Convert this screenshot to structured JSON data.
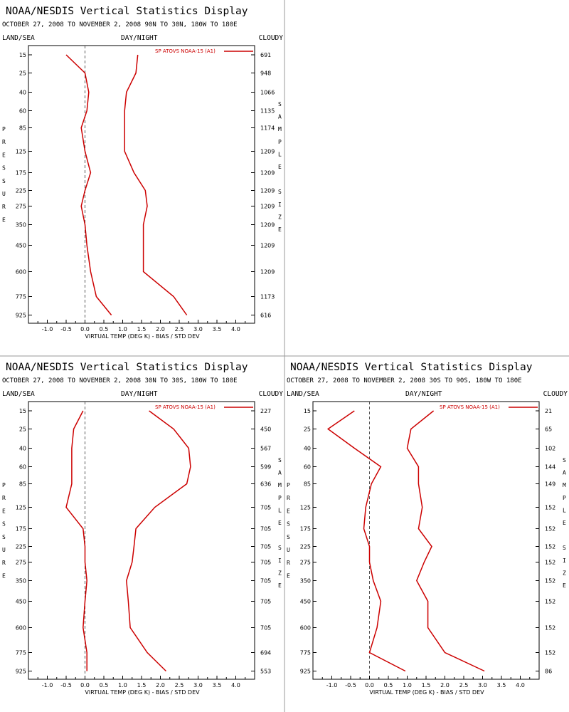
{
  "panels": [
    {
      "title": "NOAA/NESDIS Vertical Statistics Display",
      "subtitle": "OCTOBER 27, 2008 TO NOVEMBER 2, 2008 90N TO 30N, 180W TO 180E",
      "header_left": "LAND/SEA",
      "header_center": "DAY/NIGHT",
      "header_right": "CLOUDY",
      "ylabel": "PRESSURE",
      "y2label": "SAMPLE SIZE",
      "xlabel": "VIRTUAL TEMP (DEG K) - BIAS / STD DEV",
      "legend": "SP ATOVS NOAA-15 (A1)",
      "chart_data": {
        "type": "line",
        "pressure_levels": [
          15,
          25,
          40,
          60,
          85,
          125,
          175,
          225,
          275,
          350,
          450,
          600,
          775,
          925
        ],
        "x_ticks": [
          "-1.0",
          "-0.5",
          "0.0",
          "0.5",
          "1.0",
          "1.5",
          "2.0",
          "2.5",
          "3.0",
          "3.5",
          "4.0"
        ],
        "xlim": [
          -1.5,
          4.5
        ],
        "zero_line": "dashed",
        "color": "#cc0000",
        "series": [
          {
            "values": [
              -0.5,
              0.0,
              0.1,
              0.05,
              -0.1,
              0.0,
              0.15,
              0.0,
              -0.1,
              0.0,
              0.05,
              0.15,
              0.3,
              0.7
            ]
          },
          {
            "values": [
              1.4,
              1.35,
              1.1,
              1.05,
              1.05,
              1.05,
              1.3,
              1.6,
              1.65,
              1.55,
              1.55,
              1.55,
              2.35,
              2.7
            ]
          }
        ],
        "sample_size": [
          "691",
          "948",
          "1066",
          "1135",
          "1174",
          "1209",
          "1209",
          "1209",
          "1209",
          "1209",
          "1209",
          "1209",
          "1173",
          "616"
        ]
      }
    },
    {
      "title": "NOAA/NESDIS Vertical Statistics Display",
      "subtitle": "OCTOBER 27, 2008 TO NOVEMBER 2, 2008 30N TO 30S, 180W TO 180E",
      "header_left": "LAND/SEA",
      "header_center": "DAY/NIGHT",
      "header_right": "CLOUDY",
      "ylabel": "PRESSURE",
      "y2label": "SAMPLE SIZE",
      "xlabel": "VIRTUAL TEMP (DEG K) - BIAS / STD DEV",
      "legend": "SP ATOVS NOAA-15 (A1)",
      "chart_data": {
        "type": "line",
        "pressure_levels": [
          15,
          25,
          40,
          60,
          85,
          125,
          175,
          225,
          275,
          350,
          450,
          600,
          775,
          925
        ],
        "x_ticks": [
          "-1.0",
          "-0.5",
          "0.0",
          "0.5",
          "1.0",
          "1.5",
          "2.0",
          "2.5",
          "3.0",
          "3.5",
          "4.0"
        ],
        "xlim": [
          -1.5,
          4.5
        ],
        "zero_line": "dashed",
        "color": "#cc0000",
        "series": [
          {
            "values": [
              -0.05,
              -0.3,
              -0.35,
              -0.35,
              -0.35,
              -0.5,
              -0.05,
              0.0,
              0.0,
              0.05,
              0.0,
              -0.05,
              0.05,
              0.05
            ]
          },
          {
            "values": [
              1.7,
              2.35,
              2.75,
              2.8,
              2.7,
              1.85,
              1.35,
              1.3,
              1.25,
              1.1,
              1.15,
              1.2,
              1.65,
              2.15
            ]
          }
        ],
        "sample_size": [
          "227",
          "450",
          "567",
          "599",
          "636",
          "705",
          "705",
          "705",
          "705",
          "705",
          "705",
          "705",
          "694",
          "553"
        ]
      }
    },
    {
      "title": "NOAA/NESDIS Vertical Statistics Display",
      "subtitle": "OCTOBER 27, 2008 TO NOVEMBER 2, 2008 30S TO 90S, 180W TO 180E",
      "header_left": "LAND/SEA",
      "header_center": "DAY/NIGHT",
      "header_right": "CLOUDY",
      "ylabel": "PRESSURE",
      "y2label": "SAMPLE SIZE",
      "xlabel": "VIRTUAL TEMP (DEG K) - BIAS / STD DEV",
      "legend": "SP ATOVS NOAA-15 (A1)",
      "chart_data": {
        "type": "line",
        "pressure_levels": [
          15,
          25,
          40,
          60,
          85,
          125,
          175,
          225,
          275,
          350,
          450,
          600,
          775,
          925
        ],
        "x_ticks": [
          "-1.0",
          "-0.5",
          "0.0",
          "0.5",
          "1.0",
          "1.5",
          "2.0",
          "2.5",
          "3.0",
          "3.5",
          "4.0"
        ],
        "xlim": [
          -1.5,
          4.5
        ],
        "zero_line": "dashed",
        "color": "#cc0000",
        "series": [
          {
            "values": [
              -0.4,
              -1.1,
              -0.4,
              0.3,
              0.05,
              -0.1,
              -0.15,
              0.0,
              0.0,
              0.1,
              0.3,
              0.2,
              0.0,
              0.95
            ]
          },
          {
            "values": [
              1.7,
              1.1,
              1.0,
              1.3,
              1.3,
              1.4,
              1.3,
              1.65,
              1.45,
              1.25,
              1.55,
              1.55,
              2.0,
              3.05
            ]
          }
        ],
        "sample_size": [
          "21",
          "65",
          "102",
          "144",
          "149",
          "152",
          "152",
          "152",
          "152",
          "152",
          "152",
          "152",
          "152",
          "86"
        ]
      }
    }
  ]
}
